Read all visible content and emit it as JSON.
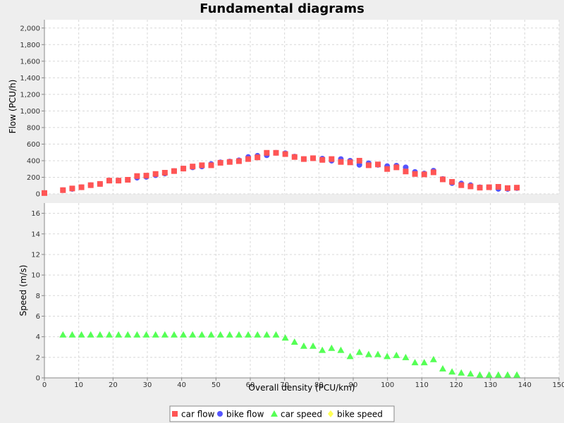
{
  "chart_data": {
    "type": "scatter",
    "title": "Fundamental diagrams",
    "xlabel": "Overall density (PCU/km)",
    "xlim": [
      0,
      150
    ],
    "x_ticks": [
      "0",
      "10",
      "20",
      "30",
      "40",
      "50",
      "60",
      "70",
      "80",
      "90",
      "100",
      "110",
      "120",
      "130",
      "140",
      "150"
    ],
    "grid": true,
    "legend_position": "bottom",
    "legend": [
      {
        "name": "car flow",
        "marker": "square",
        "color": "#ff5555"
      },
      {
        "name": "bike flow",
        "marker": "circle",
        "color": "#5555ff"
      },
      {
        "name": "car speed",
        "marker": "triangle",
        "color": "#55ff55"
      },
      {
        "name": "bike speed",
        "marker": "diamond",
        "color": "#ffff55"
      }
    ],
    "panels": [
      {
        "ylabel": "Flow (PCU/h)",
        "ylim": [
          0,
          2100
        ],
        "y_ticks": [
          "0",
          "200",
          "400",
          "600",
          "800",
          "1,000",
          "1,200",
          "1,400",
          "1,600",
          "1,800",
          "2,000"
        ],
        "series": [
          {
            "name": "bike flow",
            "marker": "circle",
            "color": "#5555ff",
            "points": [
              [
                5.4,
                45
              ],
              [
                8.1,
                60
              ],
              [
                10.8,
                80
              ],
              [
                13.5,
                105
              ],
              [
                16.2,
                120
              ],
              [
                18.9,
                160
              ],
              [
                21.6,
                160
              ],
              [
                24.3,
                170
              ],
              [
                27,
                195
              ],
              [
                29.7,
                205
              ],
              [
                32.4,
                225
              ],
              [
                35.1,
                245
              ],
              [
                37.8,
                275
              ],
              [
                40.5,
                305
              ],
              [
                43.2,
                320
              ],
              [
                45.9,
                330
              ],
              [
                48.6,
                360
              ],
              [
                51.3,
                380
              ],
              [
                54,
                390
              ],
              [
                56.7,
                405
              ],
              [
                59.4,
                445
              ],
              [
                62.1,
                460
              ],
              [
                64.8,
                465
              ],
              [
                67.5,
                495
              ],
              [
                70.2,
                490
              ],
              [
                72.9,
                450
              ],
              [
                75.6,
                420
              ],
              [
                78.3,
                430
              ],
              [
                81,
                425
              ],
              [
                83.7,
                400
              ],
              [
                86.4,
                420
              ],
              [
                89.1,
                400
              ],
              [
                91.8,
                350
              ],
              [
                94.5,
                370
              ],
              [
                97.2,
                350
              ],
              [
                99.9,
                335
              ],
              [
                102.6,
                340
              ],
              [
                105.3,
                320
              ],
              [
                108,
                265
              ],
              [
                110.7,
                245
              ],
              [
                113.4,
                280
              ],
              [
                116.1,
                180
              ],
              [
                118.8,
                130
              ],
              [
                121.5,
                125
              ],
              [
                124.2,
                105
              ],
              [
                126.9,
                80
              ],
              [
                129.6,
                80
              ],
              [
                132.3,
                60
              ],
              [
                135,
                60
              ],
              [
                137.7,
                70
              ]
            ]
          },
          {
            "name": "car flow",
            "marker": "square",
            "color": "#ff5555",
            "points": [
              [
                0,
                10
              ],
              [
                5.4,
                45
              ],
              [
                8.1,
                65
              ],
              [
                10.8,
                80
              ],
              [
                13.5,
                105
              ],
              [
                16.2,
                120
              ],
              [
                18.9,
                160
              ],
              [
                21.6,
                160
              ],
              [
                24.3,
                170
              ],
              [
                27,
                215
              ],
              [
                29.7,
                220
              ],
              [
                32.4,
                240
              ],
              [
                35.1,
                255
              ],
              [
                37.8,
                275
              ],
              [
                40.5,
                305
              ],
              [
                43.2,
                330
              ],
              [
                45.9,
                345
              ],
              [
                48.6,
                345
              ],
              [
                51.3,
                375
              ],
              [
                54,
                385
              ],
              [
                56.7,
                395
              ],
              [
                59.4,
                420
              ],
              [
                62.1,
                440
              ],
              [
                64.8,
                495
              ],
              [
                67.5,
                495
              ],
              [
                70.2,
                480
              ],
              [
                72.9,
                445
              ],
              [
                75.6,
                420
              ],
              [
                78.3,
                430
              ],
              [
                81,
                410
              ],
              [
                83.7,
                420
              ],
              [
                86.4,
                385
              ],
              [
                89.1,
                380
              ],
              [
                91.8,
                400
              ],
              [
                94.5,
                345
              ],
              [
                97.2,
                355
              ],
              [
                99.9,
                300
              ],
              [
                102.6,
                320
              ],
              [
                105.3,
                270
              ],
              [
                108,
                240
              ],
              [
                110.7,
                235
              ],
              [
                113.4,
                260
              ],
              [
                116.1,
                175
              ],
              [
                118.8,
                145
              ],
              [
                121.5,
                105
              ],
              [
                124.2,
                90
              ],
              [
                126.9,
                75
              ],
              [
                129.6,
                80
              ],
              [
                132.3,
                85
              ],
              [
                135,
                70
              ],
              [
                137.7,
                75
              ]
            ]
          }
        ]
      },
      {
        "ylabel": "Speed (m/s)",
        "ylim": [
          0,
          17
        ],
        "y_ticks": [
          "0",
          "2",
          "4",
          "6",
          "8",
          "10",
          "12",
          "14",
          "16"
        ],
        "series": [
          {
            "name": "car speed",
            "marker": "triangle",
            "color": "#55ff55",
            "points": [
              [
                5.4,
                4.2
              ],
              [
                8.1,
                4.2
              ],
              [
                10.8,
                4.2
              ],
              [
                13.5,
                4.2
              ],
              [
                16.2,
                4.2
              ],
              [
                18.9,
                4.2
              ],
              [
                21.6,
                4.2
              ],
              [
                24.3,
                4.2
              ],
              [
                27,
                4.2
              ],
              [
                29.7,
                4.2
              ],
              [
                32.4,
                4.2
              ],
              [
                35.1,
                4.2
              ],
              [
                37.8,
                4.2
              ],
              [
                40.5,
                4.2
              ],
              [
                43.2,
                4.2
              ],
              [
                45.9,
                4.2
              ],
              [
                48.6,
                4.2
              ],
              [
                51.3,
                4.2
              ],
              [
                54,
                4.2
              ],
              [
                56.7,
                4.2
              ],
              [
                59.4,
                4.2
              ],
              [
                62.1,
                4.2
              ],
              [
                64.8,
                4.2
              ],
              [
                67.5,
                4.2
              ],
              [
                70.2,
                3.9
              ],
              [
                72.9,
                3.5
              ],
              [
                75.6,
                3.1
              ],
              [
                78.3,
                3.1
              ],
              [
                81,
                2.7
              ],
              [
                83.7,
                2.9
              ],
              [
                86.4,
                2.7
              ],
              [
                89.1,
                2.1
              ],
              [
                91.8,
                2.5
              ],
              [
                94.5,
                2.3
              ],
              [
                97.2,
                2.3
              ],
              [
                99.9,
                2.1
              ],
              [
                102.6,
                2.2
              ],
              [
                105.3,
                2.0
              ],
              [
                108,
                1.5
              ],
              [
                110.7,
                1.5
              ],
              [
                113.4,
                1.8
              ],
              [
                116.1,
                0.9
              ],
              [
                118.8,
                0.6
              ],
              [
                121.5,
                0.5
              ],
              [
                124.2,
                0.4
              ],
              [
                126.9,
                0.3
              ],
              [
                129.6,
                0.3
              ],
              [
                132.3,
                0.3
              ],
              [
                135,
                0.3
              ],
              [
                137.7,
                0.3
              ]
            ]
          }
        ]
      }
    ]
  }
}
